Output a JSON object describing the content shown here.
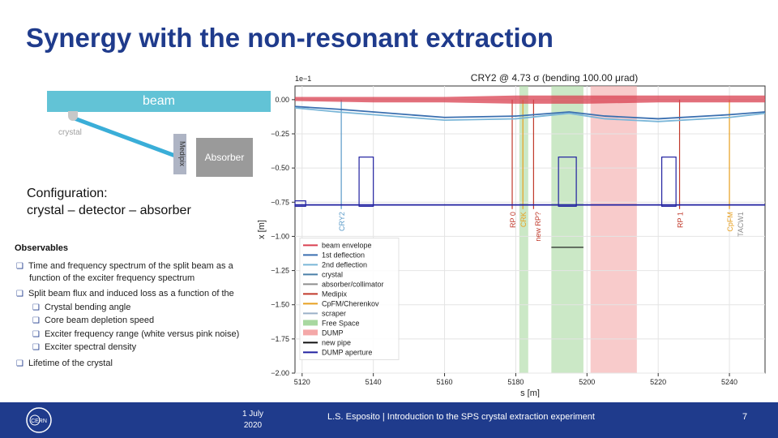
{
  "slide": {
    "title": "Synergy with the non-resonant extraction",
    "schematic": {
      "beam_label": "beam",
      "crystal_label": "crystal",
      "medipix_label": "Medipix",
      "absorber_label": "Absorber"
    },
    "config_line1": "Configuration:",
    "config_line2": "crystal – detector – absorber",
    "observables_title": "Observables",
    "observables": {
      "item1_line1": "Time and frequency spectrum of the split beam as a",
      "item1_line2": "function of the exciter frequency spectrum",
      "item2_line1": "Split beam flux and induced loss as a function of the",
      "sub1": "Crystal bending angle",
      "sub2": "Core beam depletion speed",
      "sub3": "Exciter frequency range (white versus pink noise)",
      "sub4": "Exciter spectral density",
      "item3": "Lifetime of the crystal"
    },
    "footer": {
      "date_line1": "1 July",
      "date_line2": "2020",
      "text": "L.S. Esposito | Introduction to the SPS crystal extraction experiment",
      "page": "7",
      "logo_text": "CERN"
    }
  },
  "chart_data": {
    "type": "line",
    "title": "CRY2 @ 4.73 σ (bending 100.00 μrad)",
    "exponent_label": "1e−1",
    "xlabel": "s [m]",
    "ylabel": "x [m]",
    "xlim": [
      5118,
      5250
    ],
    "ylim": [
      -2.0,
      0.1
    ],
    "xticks": [
      "5120",
      "5140",
      "5160",
      "5180",
      "5200",
      "5220",
      "5240"
    ],
    "xtick_values": [
      5120,
      5140,
      5160,
      5180,
      5200,
      5220,
      5240
    ],
    "yticks": [
      "0.00",
      "−0.25",
      "−0.50",
      "−0.75",
      "−1.00",
      "−1.25",
      "−1.50",
      "−1.75",
      "−2.00"
    ],
    "ytick_values": [
      0.0,
      -0.25,
      -0.5,
      -0.75,
      -1.0,
      -1.25,
      -1.5,
      -1.75,
      -2.0
    ],
    "grid": true,
    "legend_position": "lower-left",
    "legend": [
      {
        "label": "beam envelope",
        "color": "#d94050",
        "kind": "line"
      },
      {
        "label": "1st deflection",
        "color": "#3a6fb0",
        "kind": "line"
      },
      {
        "label": "2nd deflection",
        "color": "#7ab6d8",
        "kind": "line"
      },
      {
        "label": "crystal",
        "color": "#4a7fa8",
        "kind": "line"
      },
      {
        "label": "absorber/collimator",
        "color": "#8e8e8e",
        "kind": "line"
      },
      {
        "label": "Medipix",
        "color": "#c0392b",
        "kind": "line"
      },
      {
        "label": "CpFM/Cherenkov",
        "color": "#e8a020",
        "kind": "line"
      },
      {
        "label": "scraper",
        "color": "#9ab0c8",
        "kind": "line"
      },
      {
        "label": "Free Space",
        "color": "#a8d8a0",
        "kind": "patch"
      },
      {
        "label": "DUMP",
        "color": "#f4a8a8",
        "kind": "patch"
      },
      {
        "label": "new pipe",
        "color": "#111111",
        "kind": "line"
      },
      {
        "label": "DUMP aperture",
        "color": "#2020a0",
        "kind": "line"
      }
    ],
    "vertical_labels": [
      {
        "label": "CRY2",
        "x": 5131,
        "color": "#5a9ac8"
      },
      {
        "label": "CRK",
        "x": 5182,
        "color": "#e8a020"
      },
      {
        "label": "RP 0",
        "x": 5179,
        "color": "#c0392b"
      },
      {
        "label": "new RP?",
        "x": 5186,
        "color": "#c0392b"
      },
      {
        "label": "RP 1",
        "x": 5226,
        "color": "#c0392b"
      },
      {
        "label": "CpFM",
        "x": 5240,
        "color": "#e8a020"
      },
      {
        "label": "TACW1",
        "x": 5243,
        "color": "#8e8e8e"
      }
    ],
    "regions": [
      {
        "name": "Free Space",
        "x0": 5181,
        "x1": 5183.5,
        "color": "#a8d8a0"
      },
      {
        "name": "Free Space",
        "x0": 5190,
        "x1": 5199,
        "color": "#a8d8a0"
      },
      {
        "name": "DUMP",
        "x0": 5201,
        "x1": 5214,
        "color": "#f4a8a8"
      }
    ],
    "series": [
      {
        "name": "beam envelope",
        "color": "#d94050",
        "x": [
          5118,
          5140,
          5160,
          5180,
          5200,
          5220,
          5250
        ],
        "y_upper": [
          0.02,
          0.02,
          0.02,
          0.03,
          0.03,
          0.03,
          0.03
        ],
        "y_lower": [
          -0.01,
          -0.02,
          -0.02,
          -0.03,
          -0.03,
          -0.02,
          -0.02
        ]
      },
      {
        "name": "1st deflection",
        "color": "#3a6fb0",
        "x": [
          5118,
          5130,
          5140,
          5160,
          5180,
          5195,
          5205,
          5220,
          5240,
          5250
        ],
        "y": [
          -0.05,
          -0.07,
          -0.09,
          -0.13,
          -0.12,
          -0.09,
          -0.12,
          -0.14,
          -0.11,
          -0.09
        ]
      },
      {
        "name": "2nd deflection",
        "color": "#7ab6d8",
        "x": [
          5118,
          5130,
          5140,
          5160,
          5180,
          5195,
          5205,
          5220,
          5240,
          5250
        ],
        "y": [
          -0.06,
          -0.09,
          -0.11,
          -0.15,
          -0.14,
          -0.1,
          -0.14,
          -0.16,
          -0.13,
          -0.1
        ]
      },
      {
        "name": "DUMP aperture",
        "color": "#2020a0",
        "x": [
          5118,
          5250
        ],
        "y": [
          -0.77,
          -0.77
        ]
      }
    ],
    "collimators": [
      {
        "x0": 5136,
        "x1": 5140,
        "y": -0.42
      },
      {
        "x0": 5192,
        "x1": 5197,
        "y": -0.42
      },
      {
        "x0": 5221,
        "x1": 5225,
        "y": -0.42
      },
      {
        "x0": 5118,
        "x1": 5121,
        "y": -0.74
      }
    ],
    "new_pipe": {
      "x0": 5190,
      "x1": 5199,
      "y": -1.08
    },
    "markers": [
      {
        "x": 5131,
        "color": "#5a9ac8"
      },
      {
        "x": 5179,
        "color": "#c0392b"
      },
      {
        "x": 5182,
        "color": "#e8a020"
      },
      {
        "x": 5185,
        "color": "#c0392b"
      },
      {
        "x": 5226,
        "color": "#c0392b"
      },
      {
        "x": 5240,
        "color": "#e8a020"
      }
    ]
  }
}
